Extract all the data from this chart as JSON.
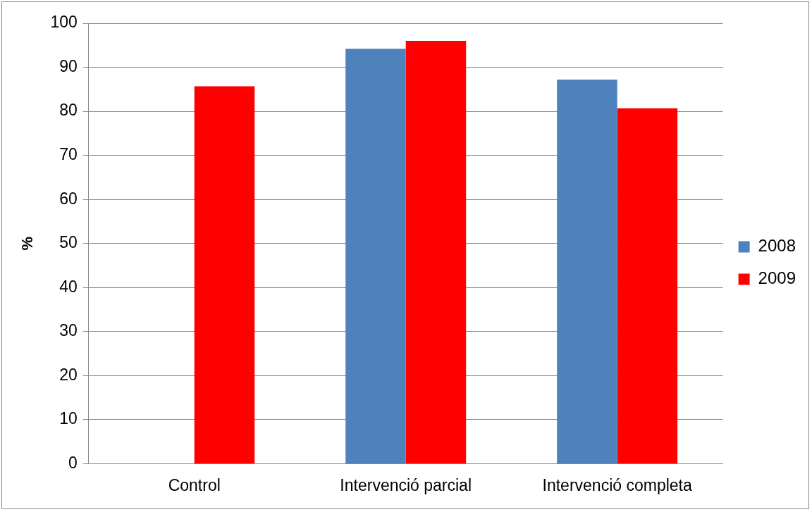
{
  "chart_data": {
    "type": "bar",
    "ylabel": "%",
    "categories": [
      "Control",
      "Intervenció parcial",
      "Intervenció completa"
    ],
    "series": [
      {
        "name": "2008",
        "color": "#4f81bd",
        "values": [
          null,
          94.2,
          87.2
        ]
      },
      {
        "name": "2009",
        "color": "#ff0000",
        "values": [
          85.7,
          96.0,
          80.7
        ]
      }
    ],
    "ylim": [
      0,
      100
    ],
    "yticks": [
      0,
      10,
      20,
      30,
      40,
      50,
      60,
      70,
      80,
      90,
      100
    ],
    "grid": "y",
    "legend": "right"
  }
}
